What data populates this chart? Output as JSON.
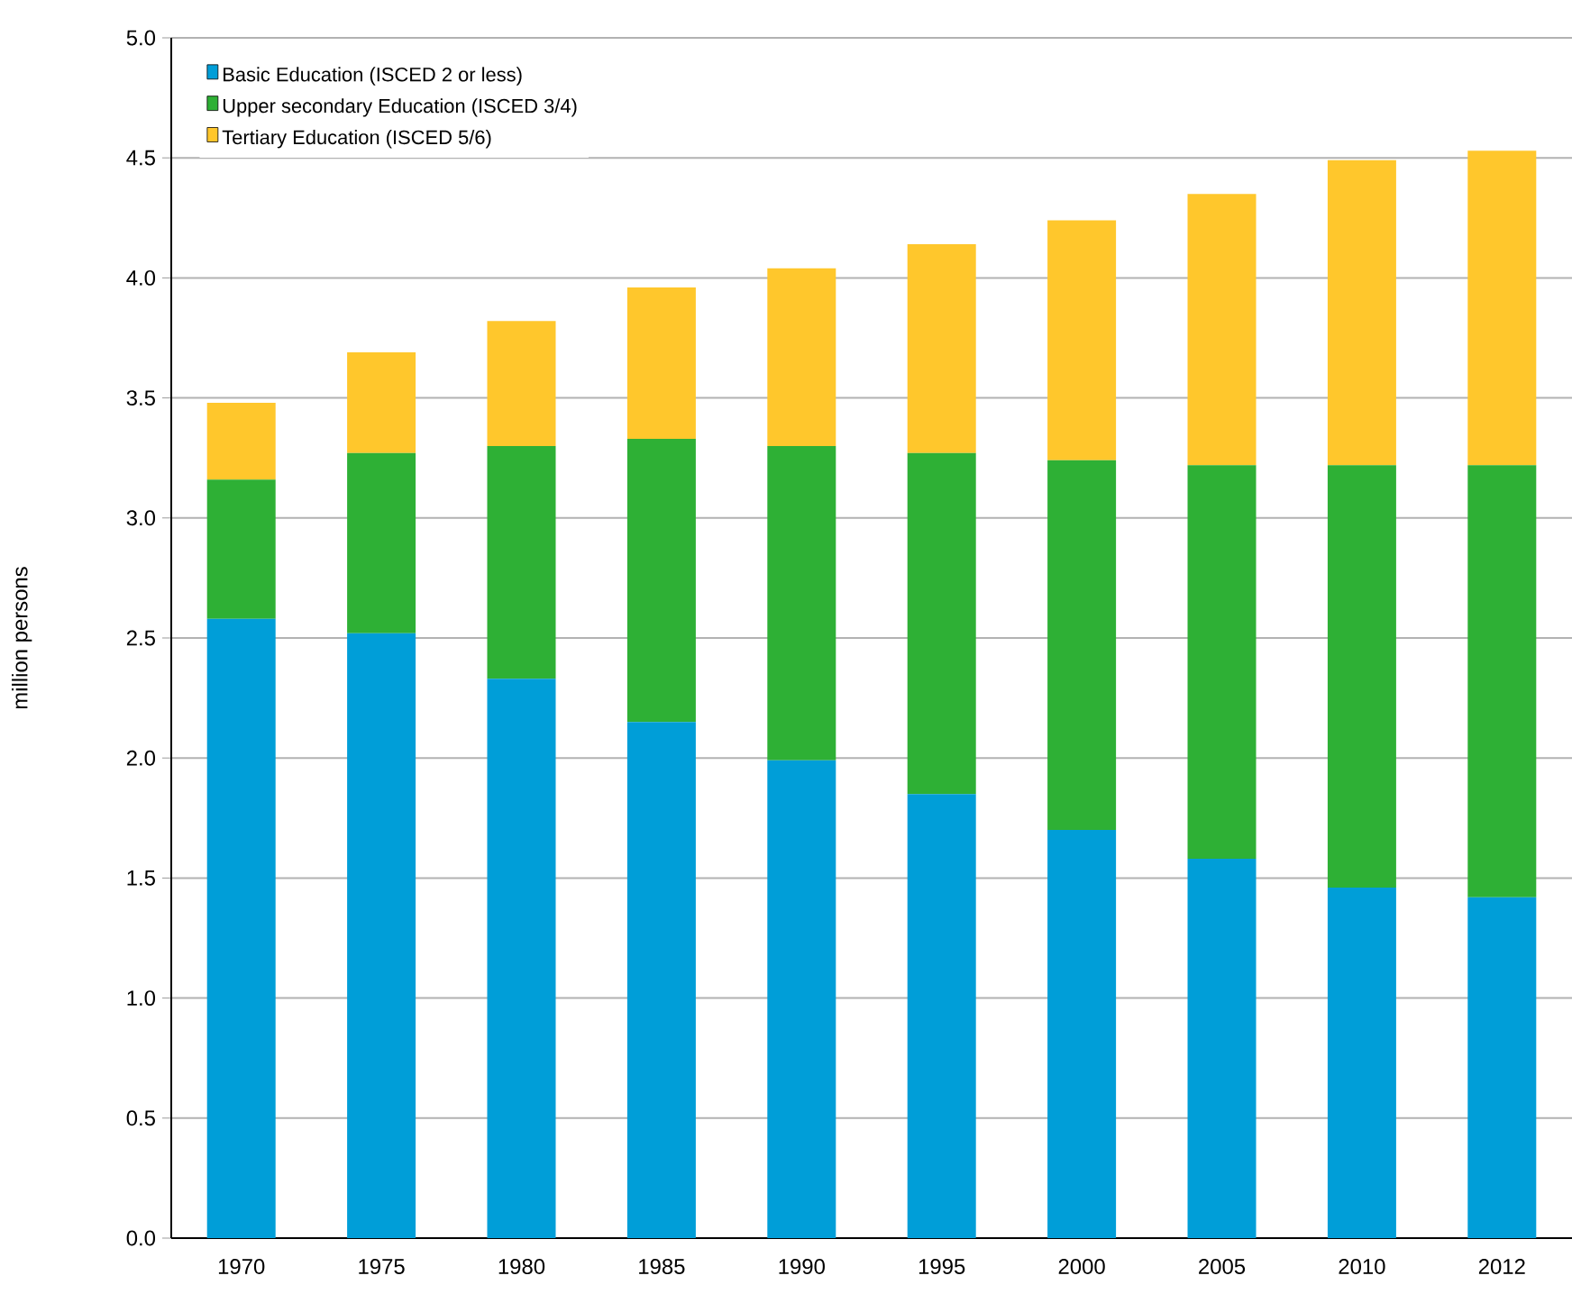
{
  "chart_data": {
    "type": "bar",
    "stacked": true,
    "ylabel": "million persons",
    "categories": [
      "1970",
      "1975",
      "1980",
      "1985",
      "1990",
      "1995",
      "2000",
      "2005",
      "2010",
      "2012"
    ],
    "series": [
      {
        "name": "Basic Education (ISCED 2 or less)",
        "color": "#009ed8",
        "values": [
          2.58,
          2.52,
          2.33,
          2.15,
          1.99,
          1.85,
          1.7,
          1.58,
          1.46,
          1.42
        ]
      },
      {
        "name": "Upper secondary Education (ISCED 3/4)",
        "color": "#2eb035",
        "values": [
          0.58,
          0.75,
          0.97,
          1.18,
          1.31,
          1.42,
          1.54,
          1.64,
          1.76,
          1.8
        ]
      },
      {
        "name": "Tertiary Education (ISCED 5/6)",
        "color": "#ffc72c",
        "values": [
          0.32,
          0.42,
          0.52,
          0.63,
          0.74,
          0.87,
          1.0,
          1.13,
          1.27,
          1.31
        ]
      }
    ],
    "ylim": [
      0,
      5
    ],
    "yticks": [
      {
        "value": 0,
        "label": "0.0"
      },
      {
        "value": 0.5,
        "label": "0.5"
      },
      {
        "value": 1,
        "label": "1.0"
      },
      {
        "value": 1.5,
        "label": "1.5"
      },
      {
        "value": 2,
        "label": "2.0"
      },
      {
        "value": 2.5,
        "label": "2.5"
      },
      {
        "value": 3,
        "label": "3.0"
      },
      {
        "value": 3.5,
        "label": "3.5"
      },
      {
        "value": 4,
        "label": "4.0"
      },
      {
        "value": 4.5,
        "label": "4.5"
      },
      {
        "value": 5,
        "label": "5.0"
      }
    ],
    "grid": "y",
    "legend": "top left"
  }
}
